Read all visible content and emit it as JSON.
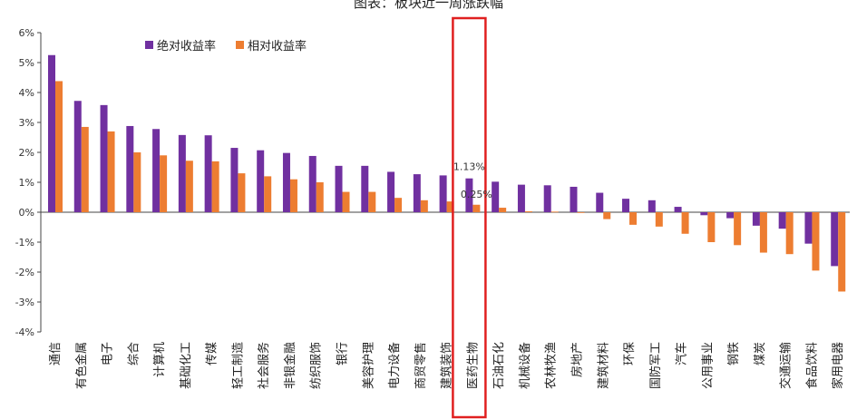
{
  "chart_data": {
    "type": "bar",
    "title": "图表：板块近一周涨跌幅",
    "categories": [
      "通信",
      "有色金属",
      "电子",
      "综合",
      "计算机",
      "基础化工",
      "传媒",
      "轻工制造",
      "社会服务",
      "非银金融",
      "纺织服饰",
      "银行",
      "美容护理",
      "电力设备",
      "商贸零售",
      "建筑装饰",
      "医药生物",
      "石油石化",
      "机械设备",
      "农林牧渔",
      "房地产",
      "建筑材料",
      "环保",
      "国防军工",
      "汽车",
      "公用事业",
      "钢铁",
      "煤炭",
      "交通运输",
      "食品饮料",
      "家用电器"
    ],
    "series": [
      {
        "name": "绝对收益率",
        "color": "#7030a0",
        "values": [
          5.25,
          3.72,
          3.58,
          2.88,
          2.78,
          2.58,
          2.57,
          2.15,
          2.07,
          1.98,
          1.88,
          1.55,
          1.55,
          1.35,
          1.27,
          1.23,
          1.13,
          1.02,
          0.92,
          0.9,
          0.85,
          0.65,
          0.45,
          0.4,
          0.18,
          -0.1,
          -0.2,
          -0.45,
          -0.55,
          -1.05,
          -1.8
        ]
      },
      {
        "name": "相对收益率",
        "color": "#ed7d31",
        "values": [
          4.38,
          2.85,
          2.7,
          2.0,
          1.9,
          1.72,
          1.7,
          1.3,
          1.2,
          1.1,
          1.0,
          0.68,
          0.68,
          0.48,
          0.4,
          0.36,
          0.25,
          0.15,
          0.03,
          0.02,
          -0.02,
          -0.23,
          -0.42,
          -0.48,
          -0.72,
          -1.0,
          -1.1,
          -1.35,
          -1.4,
          -1.95,
          -2.65
        ]
      }
    ],
    "ylim": [
      -4,
      6
    ],
    "yticks": [
      6,
      5,
      4,
      3,
      2,
      1,
      0,
      -1,
      -2,
      -3,
      -4
    ],
    "ytick_labels": [
      "6%",
      "5%",
      "4%",
      "3%",
      "2%",
      "1%",
      "0%",
      "-1%",
      "-2%",
      "-3%",
      "-4%"
    ],
    "annotations": [
      {
        "category": "医药生物",
        "series": "绝对收益率",
        "text": "1.13%"
      },
      {
        "category": "医药生物",
        "series": "相对收益率",
        "text": "0.25%"
      }
    ],
    "highlight": {
      "category": "医药生物",
      "color": "#e02020"
    },
    "grid": false,
    "legend_position": "top-left"
  }
}
